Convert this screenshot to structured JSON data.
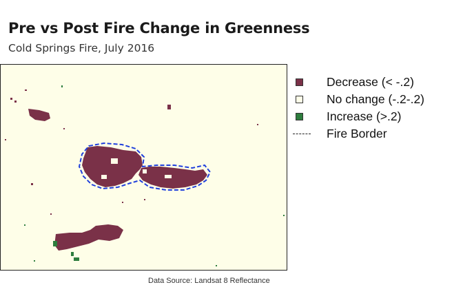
{
  "title": "Pre vs Post Fire Change in Greenness",
  "subtitle": "Cold Springs Fire, July 2016",
  "source": "Data Source: Landsat 8 Reflectance",
  "colors": {
    "decrease": "#7a3148",
    "no_change": "#fefee8",
    "increase": "#2e7d3e",
    "fire_border": "#1f3fdc"
  },
  "legend": [
    {
      "id": "decrease",
      "label": "Decrease (< -.2)",
      "swatch": "square",
      "color": "#7a3148"
    },
    {
      "id": "no_change",
      "label": "No change (-.2-.2)",
      "swatch": "square",
      "color": "#fefee8"
    },
    {
      "id": "increase",
      "label": "Increase (>.2)",
      "swatch": "square",
      "color": "#2e7d3e"
    },
    {
      "id": "fire_border",
      "label": "Fire Border",
      "swatch": "dash-dot-line",
      "color": "#222222"
    }
  ]
}
